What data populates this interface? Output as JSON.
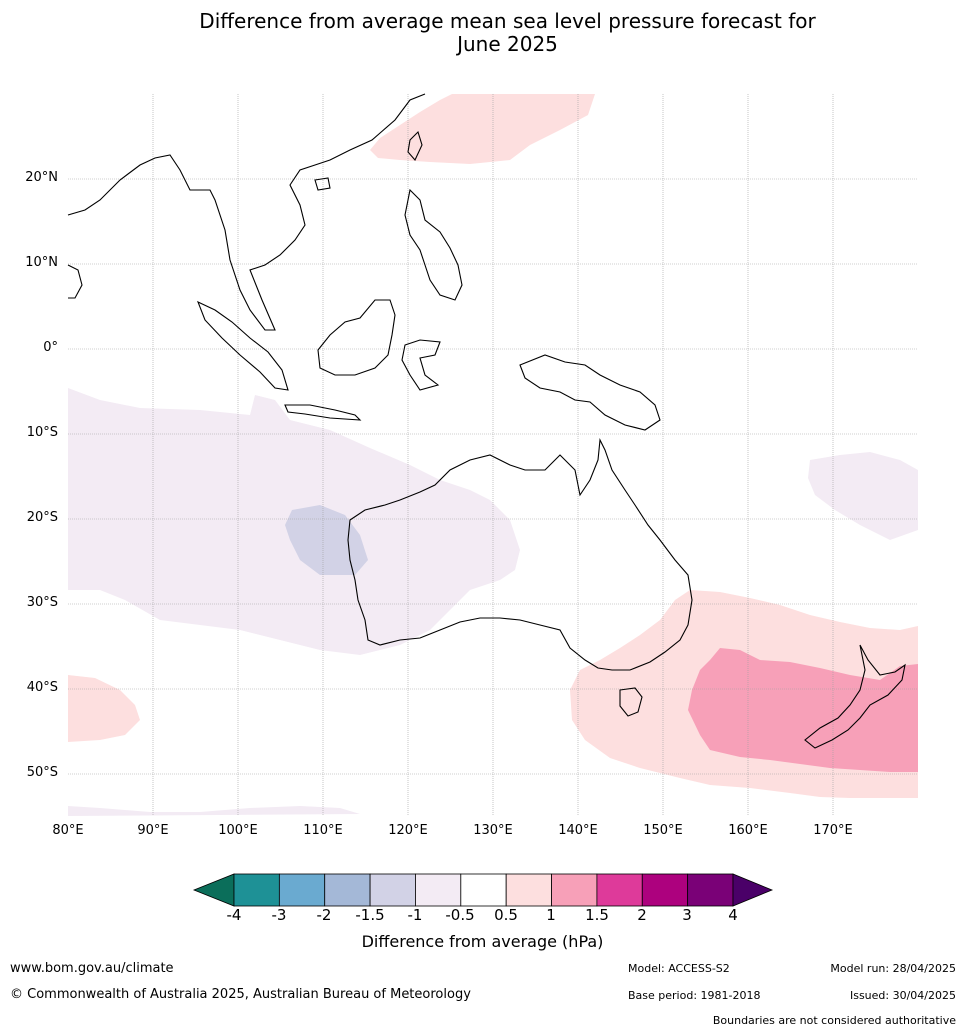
{
  "title": {
    "line1": "Difference from average mean sea level pressure forecast for",
    "line2": "June 2025"
  },
  "axes": {
    "lat_labels": [
      "20°N",
      "10°N",
      "0°",
      "10°S",
      "20°S",
      "30°S",
      "40°S",
      "50°S"
    ],
    "lon_labels": [
      "80°E",
      "90°E",
      "100°E",
      "110°E",
      "120°E",
      "130°E",
      "140°E",
      "150°E",
      "160°E",
      "170°E"
    ],
    "lat_values": [
      20,
      10,
      0,
      -10,
      -20,
      -30,
      -40,
      -50
    ],
    "lon_values": [
      80,
      90,
      100,
      110,
      120,
      130,
      140,
      150,
      160,
      170
    ],
    "lat_range": [
      -55,
      30
    ],
    "lon_range": [
      80,
      180
    ]
  },
  "colorbar": {
    "label": "Difference from average (hPa)",
    "ticks": [
      "-4",
      "-3",
      "-2",
      "-1.5",
      "-1",
      "-0.5",
      "0.5",
      "1",
      "1.5",
      "2",
      "3",
      "4"
    ],
    "colors": [
      "#0b6e5a",
      "#1e9196",
      "#6aaad0",
      "#a4b8d7",
      "#d2d2e6",
      "#f3ebf4",
      "#ffffff",
      "#fddfdf",
      "#f7a0b8",
      "#de3a9a",
      "#ad017e",
      "#7a0177",
      "#4a0068"
    ]
  },
  "regions": [
    {
      "name": "taiwan-positive-anomaly",
      "level": "0.5 to 1",
      "color": "#fddfdf"
    },
    {
      "name": "indian-ocean-negative-anomaly",
      "level": "-1 to -0.5",
      "color": "#f3ebf4"
    },
    {
      "name": "west-australia-negative-anomaly",
      "level": "-1.5 to -1",
      "color": "#d2d2e6"
    },
    {
      "name": "tasman-positive-anomaly",
      "level": "0.5 to 1",
      "color": "#fddfdf"
    },
    {
      "name": "new-zealand-positive-anomaly",
      "level": "1 to 1.5",
      "color": "#f7a0b8"
    },
    {
      "name": "southwest-positive-anomaly",
      "level": "0.5 to 1",
      "color": "#fddfdf"
    },
    {
      "name": "pacific-negative-anomaly",
      "level": "-1 to -0.5",
      "color": "#f3ebf4"
    }
  ],
  "footer": {
    "website": "www.bom.gov.au/climate",
    "copyright": "© Commonwealth of Australia 2025, Australian Bureau of Meteorology",
    "model": "Model: ACCESS-S2",
    "base_period": "Base period: 1981-2018",
    "model_run": "Model run: 28/04/2025",
    "issued": "Issued: 30/04/2025",
    "disclaimer": "Boundaries are not considered authoritative"
  }
}
